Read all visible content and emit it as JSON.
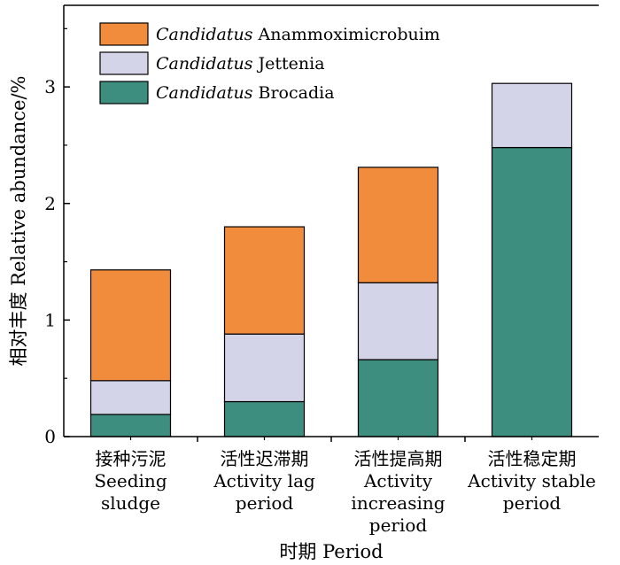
{
  "chart_data": {
    "type": "bar",
    "stacked": true,
    "xlabel": "时期 Period",
    "ylabel": "相对丰度 Relative abundance/%",
    "ylim": [
      0,
      3.7
    ],
    "yticks": [
      0,
      1,
      2,
      3
    ],
    "categories": [
      {
        "cn": "接种污泥",
        "en": [
          "Seeding",
          "sludge"
        ]
      },
      {
        "cn": "活性迟滞期",
        "en": [
          "Activity lag",
          "period"
        ]
      },
      {
        "cn": "活性提高期",
        "en": [
          "Activity",
          "increasing",
          "period"
        ]
      },
      {
        "cn": "活性稳定期",
        "en": [
          "Activity stable",
          "period"
        ]
      }
    ],
    "series": [
      {
        "name_italic": "Candidatus",
        "name_rest": " Brocadia",
        "color": "#3e8e80",
        "values": [
          0.19,
          0.3,
          0.66,
          2.48
        ]
      },
      {
        "name_italic": "Candidatus",
        "name_rest": " Jettenia",
        "color": "#d4d4e8",
        "values": [
          0.29,
          0.58,
          0.66,
          0.55
        ]
      },
      {
        "name_italic": "Candidatus",
        "name_rest": " Anammoximicrobuim",
        "color": "#f18c3d",
        "values": [
          0.95,
          0.92,
          0.99,
          0.0
        ]
      }
    ],
    "legend": {
      "position": "top-left",
      "order": [
        2,
        1,
        0
      ]
    }
  }
}
